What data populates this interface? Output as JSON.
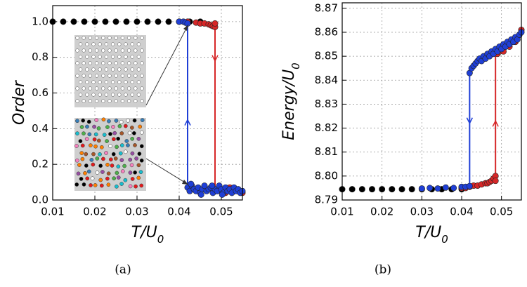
{
  "chart_data": [
    {
      "type": "scatter",
      "ylabel": "Order",
      "xlabel": "T/U",
      "xlabel_sub": "0",
      "caption": "(a)",
      "xlim": [
        0.01,
        0.055
      ],
      "ylim": [
        0,
        1.09
      ],
      "grid": true,
      "xticks": [
        0.01,
        0.02,
        0.03,
        0.04,
        0.05
      ],
      "yticks": [
        {
          "value": 0,
          "label": "0.0"
        },
        0.2,
        0.4,
        0.6,
        0.8,
        {
          "value": 1,
          "label": "1.0"
        }
      ],
      "series": [
        {
          "color": "#000000",
          "x": [
            0.01,
            0.0125,
            0.015,
            0.0175,
            0.02,
            0.0225,
            0.025,
            0.0275,
            0.03,
            0.0325,
            0.035,
            0.0375,
            0.04,
            0.0425,
            0.045
          ],
          "y": [
            1,
            1,
            1,
            1,
            1,
            1,
            1,
            1,
            1,
            1,
            1,
            1,
            1,
            1,
            1
          ]
        },
        {
          "color": "#d62728",
          "x": [
            0.04,
            0.042,
            0.044,
            0.045,
            0.046,
            0.047,
            0.0475,
            0.048,
            0.0485,
            0.0485,
            0.049,
            0.05,
            0.051,
            0.052,
            0.053,
            0.054,
            0.055,
            0.0495,
            0.0515,
            0.0535
          ],
          "y": [
            1,
            1,
            0.995,
            0.99,
            0.99,
            0.985,
            0.98,
            0.975,
            0.97,
            0.99,
            0.05,
            0.06,
            0.04,
            0.07,
            0.05,
            0.06,
            0.04,
            0.07,
            0.05,
            0.06
          ]
        },
        {
          "color": "#1f3fd6",
          "x": [
            0.04,
            0.041,
            0.0415,
            0.042,
            0.042,
            0.0425,
            0.043,
            0.0435,
            0.044,
            0.0445,
            0.045,
            0.0455,
            0.046,
            0.0465,
            0.047,
            0.0475,
            0.048,
            0.0485,
            0.049,
            0.0495,
            0.05,
            0.0505,
            0.051,
            0.0515,
            0.052,
            0.0525,
            0.053,
            0.0535,
            0.054,
            0.0545,
            0.055,
            0.0428,
            0.0452,
            0.0478,
            0.0502
          ],
          "y": [
            1,
            1,
            0.995,
            0.99,
            0.07,
            0.05,
            0.08,
            0.06,
            0.05,
            0.07,
            0.04,
            0.06,
            0.08,
            0.05,
            0.06,
            0.07,
            0.04,
            0.06,
            0.05,
            0.08,
            0.06,
            0.04,
            0.07,
            0.05,
            0.06,
            0.04,
            0.07,
            0.05,
            0.06,
            0.04,
            0.05,
            0.09,
            0.03,
            0.08,
            0.03
          ]
        }
      ],
      "lines": [
        {
          "color": "#1f3fd6",
          "x": [
            0.042,
            0.042
          ],
          "y": [
            0.06,
            1
          ],
          "arrow_y": 0.45,
          "arrow_dir": "up"
        },
        {
          "color": "#d62728",
          "x": [
            0.0485,
            0.0485
          ],
          "y": [
            0.98,
            0.05
          ],
          "arrow_y": 0.78,
          "arrow_dir": "down"
        }
      ]
    },
    {
      "type": "scatter",
      "ylabel": "Energy/U",
      "ylabel_sub": "0",
      "xlabel": "T/U",
      "xlabel_sub": "0",
      "caption": "(b)",
      "xlim": [
        0.01,
        0.055
      ],
      "ylim": [
        8.79,
        8.8723
      ],
      "grid": true,
      "xticks": [
        0.01,
        0.02,
        0.03,
        0.04,
        0.05
      ],
      "yticks": [
        8.79,
        {
          "value": 8.8,
          "label": "8.80"
        },
        8.81,
        8.82,
        8.83,
        8.84,
        8.85,
        8.86,
        8.87
      ],
      "series": [
        {
          "color": "#000000",
          "x": [
            0.01,
            0.0125,
            0.015,
            0.0175,
            0.02,
            0.0225,
            0.025,
            0.0275,
            0.03,
            0.0325,
            0.035,
            0.0375,
            0.04
          ],
          "y": [
            8.7945,
            8.7945,
            8.7945,
            8.7945,
            8.7945,
            8.7945,
            8.7945,
            8.7945,
            8.7945,
            8.7945,
            8.7945,
            8.7945,
            8.7945
          ]
        },
        {
          "color": "#d62728",
          "x": [
            0.04,
            0.041,
            0.042,
            0.043,
            0.044,
            0.045,
            0.046,
            0.0465,
            0.047,
            0.0475,
            0.048,
            0.0485,
            0.0485,
            0.049,
            0.0495,
            0.05,
            0.0505,
            0.051,
            0.0515,
            0.052,
            0.0525,
            0.053,
            0.0535,
            0.054,
            0.0545,
            0.055
          ],
          "y": [
            8.795,
            8.795,
            8.7955,
            8.796,
            8.796,
            8.7965,
            8.797,
            8.797,
            8.7975,
            8.798,
            8.799,
            8.8,
            8.798,
            8.851,
            8.852,
            8.853,
            8.852,
            8.854,
            8.855,
            8.854,
            8.856,
            8.857,
            8.856,
            8.858,
            8.859,
            8.861
          ]
        },
        {
          "color": "#1f3fd6",
          "x": [
            0.03,
            0.032,
            0.034,
            0.036,
            0.038,
            0.04,
            0.041,
            0.042,
            0.042,
            0.0425,
            0.043,
            0.0435,
            0.044,
            0.0445,
            0.045,
            0.0455,
            0.046,
            0.0465,
            0.047,
            0.0475,
            0.048,
            0.0485,
            0.049,
            0.0495,
            0.05,
            0.0505,
            0.051,
            0.0515,
            0.052,
            0.0525,
            0.053,
            0.0535,
            0.054,
            0.0545,
            0.055
          ],
          "y": [
            8.7948,
            8.795,
            8.7948,
            8.7952,
            8.795,
            8.7955,
            8.7955,
            8.7958,
            8.843,
            8.845,
            8.846,
            8.847,
            8.848,
            8.849,
            8.848,
            8.85,
            8.849,
            8.851,
            8.85,
            8.852,
            8.851,
            8.853,
            8.852,
            8.854,
            8.853,
            8.855,
            8.854,
            8.856,
            8.855,
            8.857,
            8.856,
            8.858,
            8.857,
            8.859,
            8.86
          ]
        }
      ],
      "lines": [
        {
          "color": "#1f3fd6",
          "x": [
            0.042,
            0.042
          ],
          "y": [
            8.843,
            8.7958
          ],
          "arrow_y": 8.822,
          "arrow_dir": "down"
        },
        {
          "color": "#d62728",
          "x": [
            0.0485,
            0.0485
          ],
          "y": [
            8.8,
            8.851
          ],
          "arrow_y": 8.823,
          "arrow_dir": "up"
        }
      ]
    }
  ]
}
